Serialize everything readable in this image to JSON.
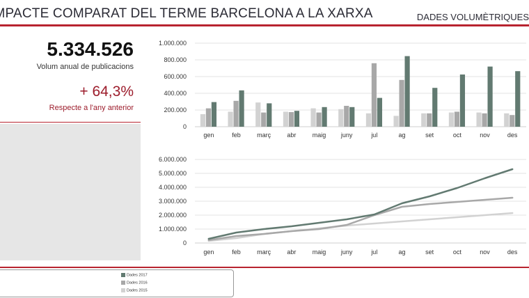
{
  "header": {
    "title": "IMPACTE COMPARAT DEL TERME BARCELONA A LA XARXA",
    "subtitle": "DADES VOLUMÈTRIQUES"
  },
  "kpi": {
    "value": "5.334.526",
    "value_label": "Volum anual de publicacions",
    "change": "+ 64,3%",
    "change_label": "Respecte a l'any anterior"
  },
  "colors": {
    "s2017": "#627a71",
    "s2016": "#a8a8a8",
    "s2015": "#d2d2d2",
    "accent": "#b8232f"
  },
  "legend": {
    "items": [
      "Dades 2017",
      "Dades 2016",
      "Dades 2015"
    ]
  },
  "chart_data": [
    {
      "type": "bar",
      "categories": [
        "gen",
        "feb",
        "març",
        "abr",
        "maig",
        "juny",
        "jul",
        "ag",
        "set",
        "oct",
        "nov",
        "des"
      ],
      "series": [
        {
          "name": "Dades 2015",
          "values": [
            150000,
            180000,
            290000,
            180000,
            220000,
            210000,
            160000,
            130000,
            160000,
            170000,
            170000,
            160000
          ]
        },
        {
          "name": "Dades 2016",
          "values": [
            220000,
            310000,
            170000,
            175000,
            170000,
            250000,
            760000,
            560000,
            160000,
            180000,
            160000,
            140000
          ]
        },
        {
          "name": "Dades 2017",
          "values": [
            295000,
            435000,
            280000,
            190000,
            235000,
            235000,
            345000,
            845000,
            465000,
            625000,
            720000,
            665000
          ]
        }
      ],
      "yticks": [
        "0",
        "200.000",
        "400.000",
        "600.000",
        "800.000",
        "1.000.000"
      ],
      "ylim": [
        0,
        1000000
      ]
    },
    {
      "type": "line",
      "categories": [
        "gen",
        "feb",
        "març",
        "abr",
        "maig",
        "juny",
        "jul",
        "ag",
        "set",
        "oct",
        "nov",
        "des"
      ],
      "series": [
        {
          "name": "Dades 2015",
          "values": [
            150000,
            350000,
            650000,
            850000,
            1050000,
            1250000,
            1400000,
            1550000,
            1700000,
            1850000,
            2000000,
            2150000
          ]
        },
        {
          "name": "Dades 2016",
          "values": [
            200000,
            500000,
            650000,
            850000,
            1000000,
            1300000,
            2000000,
            2600000,
            2800000,
            2950000,
            3100000,
            3250000
          ]
        },
        {
          "name": "Dades 2017",
          "values": [
            300000,
            750000,
            1000000,
            1200000,
            1450000,
            1700000,
            2050000,
            2850000,
            3350000,
            3950000,
            4650000,
            5300000
          ]
        }
      ],
      "yticks": [
        "0",
        "1.000.000",
        "2.000.000",
        "3.000.000",
        "4.000.000",
        "5.000.000",
        "6.000.000"
      ],
      "ylim": [
        0,
        6000000
      ]
    }
  ]
}
